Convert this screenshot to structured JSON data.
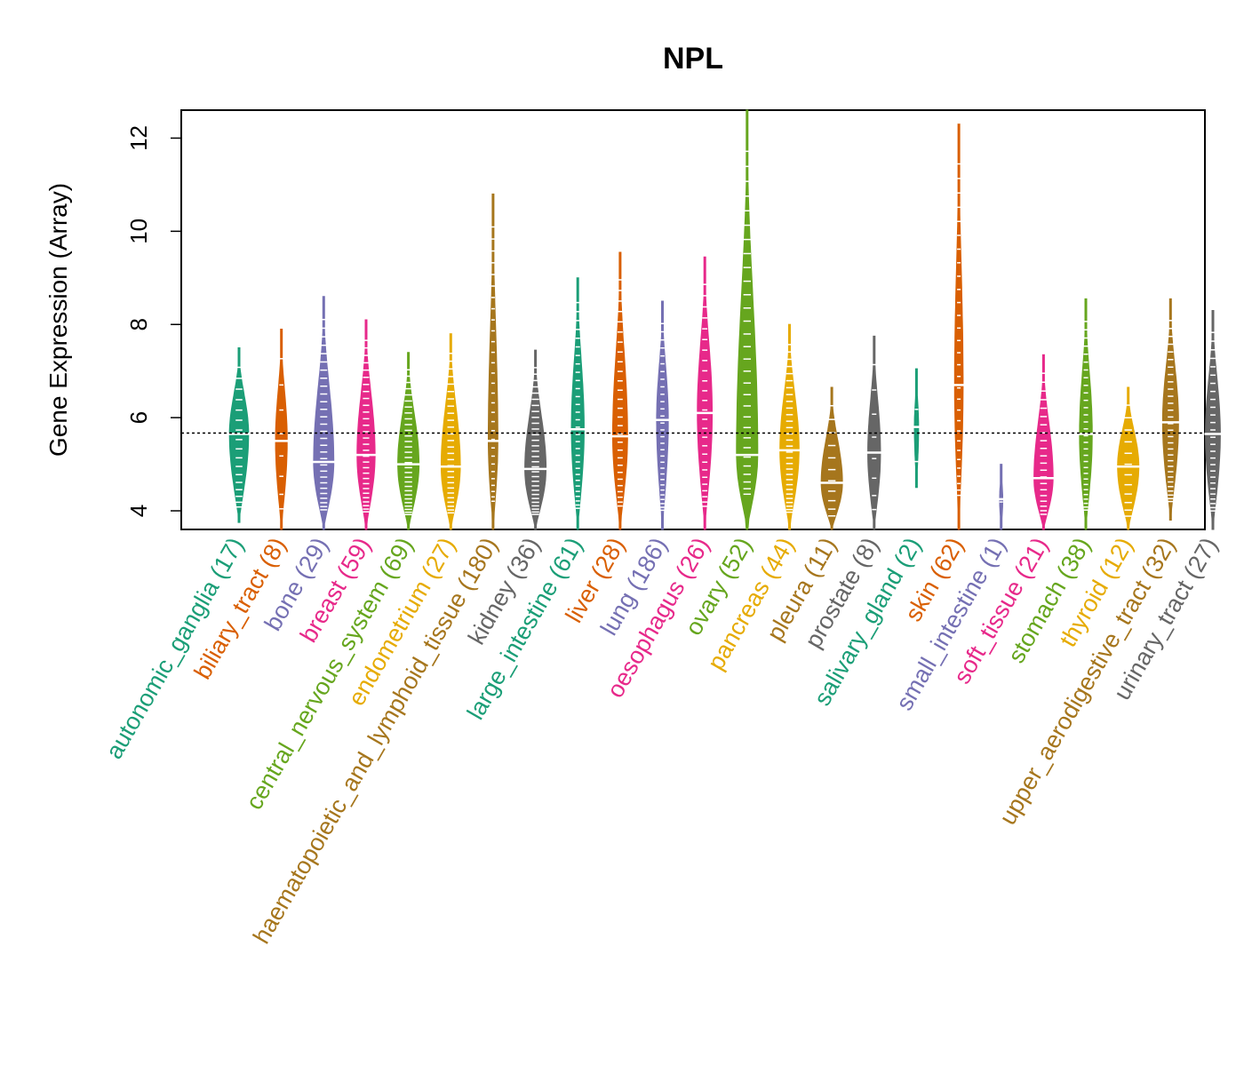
{
  "chart_data": {
    "type": "violin-beeswarm",
    "title": "NPL",
    "ylabel": "Gene Expression (Array)",
    "xlabel": "",
    "ylim": [
      3.6,
      12.6
    ],
    "yticks": [
      4,
      6,
      8,
      10,
      12
    ],
    "reference_line": 5.67,
    "colors": {
      "teal": "#1b9e77",
      "orange": "#d95f02",
      "purple": "#7570b3",
      "pink": "#e7298a",
      "green": "#66a61e",
      "gold": "#e6ab02",
      "brown": "#a6761d",
      "gray": "#666666"
    },
    "categories": [
      {
        "name": "autonomic_ganglia",
        "n": 17,
        "label": "autonomic_ganglia (17)",
        "color": "#1b9e77",
        "min": 3.75,
        "max": 7.5,
        "median": 5.65,
        "width": 0.9
      },
      {
        "name": "biliary_tract",
        "n": 8,
        "label": "biliary_tract (8)",
        "color": "#d95f02",
        "min": 3.6,
        "max": 7.9,
        "median": 5.5,
        "width": 0.55
      },
      {
        "name": "bone",
        "n": 29,
        "label": "bone (29)",
        "color": "#7570b3",
        "min": 3.6,
        "max": 8.6,
        "median": 5.05,
        "width": 0.95
      },
      {
        "name": "breast",
        "n": 59,
        "label": "breast (59)",
        "color": "#e7298a",
        "min": 3.6,
        "max": 8.1,
        "median": 5.2,
        "width": 0.85
      },
      {
        "name": "central_nervous_system",
        "n": 69,
        "label": "central_nervous_system (69)",
        "color": "#66a61e",
        "min": 3.6,
        "max": 7.4,
        "median": 5.0,
        "width": 1.0
      },
      {
        "name": "endometrium",
        "n": 27,
        "label": "endometrium (27)",
        "color": "#e6ab02",
        "min": 3.6,
        "max": 7.8,
        "median": 4.95,
        "width": 0.9
      },
      {
        "name": "haematopoietic_and_lymphoid_tissue",
        "n": 180,
        "label": "haematopoietic_and_lymphoid_tissue (180)",
        "color": "#a6761d",
        "min": 3.6,
        "max": 10.8,
        "median": 5.5,
        "width": 0.45
      },
      {
        "name": "kidney",
        "n": 36,
        "label": "kidney (36)",
        "color": "#666666",
        "min": 3.6,
        "max": 7.45,
        "median": 4.9,
        "width": 1.0
      },
      {
        "name": "large_intestine",
        "n": 61,
        "label": "large_intestine (61)",
        "color": "#1b9e77",
        "min": 3.6,
        "max": 9.0,
        "median": 5.75,
        "width": 0.6
      },
      {
        "name": "liver",
        "n": 28,
        "label": "liver (28)",
        "color": "#d95f02",
        "min": 3.6,
        "max": 9.55,
        "median": 5.6,
        "width": 0.7
      },
      {
        "name": "lung",
        "n": 186,
        "label": "lung (186)",
        "color": "#7570b3",
        "min": 3.6,
        "max": 8.5,
        "median": 5.95,
        "width": 0.55
      },
      {
        "name": "oesophagus",
        "n": 26,
        "label": "oesophagus (26)",
        "color": "#e7298a",
        "min": 3.6,
        "max": 9.45,
        "median": 6.1,
        "width": 0.7
      },
      {
        "name": "ovary",
        "n": 52,
        "label": "ovary (52)",
        "color": "#66a61e",
        "min": 3.6,
        "max": 12.6,
        "median": 5.2,
        "width": 1.0
      },
      {
        "name": "pancreas",
        "n": 44,
        "label": "pancreas (44)",
        "color": "#e6ab02",
        "min": 3.6,
        "max": 8.0,
        "median": 5.3,
        "width": 0.9
      },
      {
        "name": "pleura",
        "n": 11,
        "label": "pleura (11)",
        "color": "#a6761d",
        "min": 3.6,
        "max": 6.65,
        "median": 4.6,
        "width": 1.0
      },
      {
        "name": "prostate",
        "n": 8,
        "label": "prostate (8)",
        "color": "#666666",
        "min": 3.6,
        "max": 7.75,
        "median": 5.25,
        "width": 0.6
      },
      {
        "name": "salivary_gland",
        "n": 2,
        "label": "salivary_gland (2)",
        "color": "#1b9e77",
        "min": 4.5,
        "max": 7.05,
        "median": 5.8,
        "width": 0.2
      },
      {
        "name": "skin",
        "n": 62,
        "label": "skin (62)",
        "color": "#d95f02",
        "min": 3.6,
        "max": 12.3,
        "median": 6.7,
        "width": 0.4
      },
      {
        "name": "small_intestine",
        "n": 1,
        "label": "small_intestine (1)",
        "color": "#7570b3",
        "min": 3.6,
        "max": 5.0,
        "median": 4.25,
        "width": 0.15
      },
      {
        "name": "soft_tissue",
        "n": 21,
        "label": "soft_tissue (21)",
        "color": "#e7298a",
        "min": 3.6,
        "max": 7.35,
        "median": 4.7,
        "width": 0.9
      },
      {
        "name": "stomach",
        "n": 38,
        "label": "stomach (38)",
        "color": "#66a61e",
        "min": 3.6,
        "max": 8.55,
        "median": 5.65,
        "width": 0.6
      },
      {
        "name": "thyroid",
        "n": 12,
        "label": "thyroid (12)",
        "color": "#e6ab02",
        "min": 3.6,
        "max": 6.65,
        "median": 4.95,
        "width": 1.0
      },
      {
        "name": "upper_aerodigestive_tract",
        "n": 32,
        "label": "upper_aerodigestive_tract (32)",
        "color": "#a6761d",
        "min": 3.8,
        "max": 8.55,
        "median": 5.9,
        "width": 0.75
      },
      {
        "name": "urinary_tract",
        "n": 27,
        "label": "urinary_tract (27)",
        "color": "#666666",
        "min": 3.6,
        "max": 8.3,
        "median": 5.65,
        "width": 0.7
      }
    ]
  }
}
